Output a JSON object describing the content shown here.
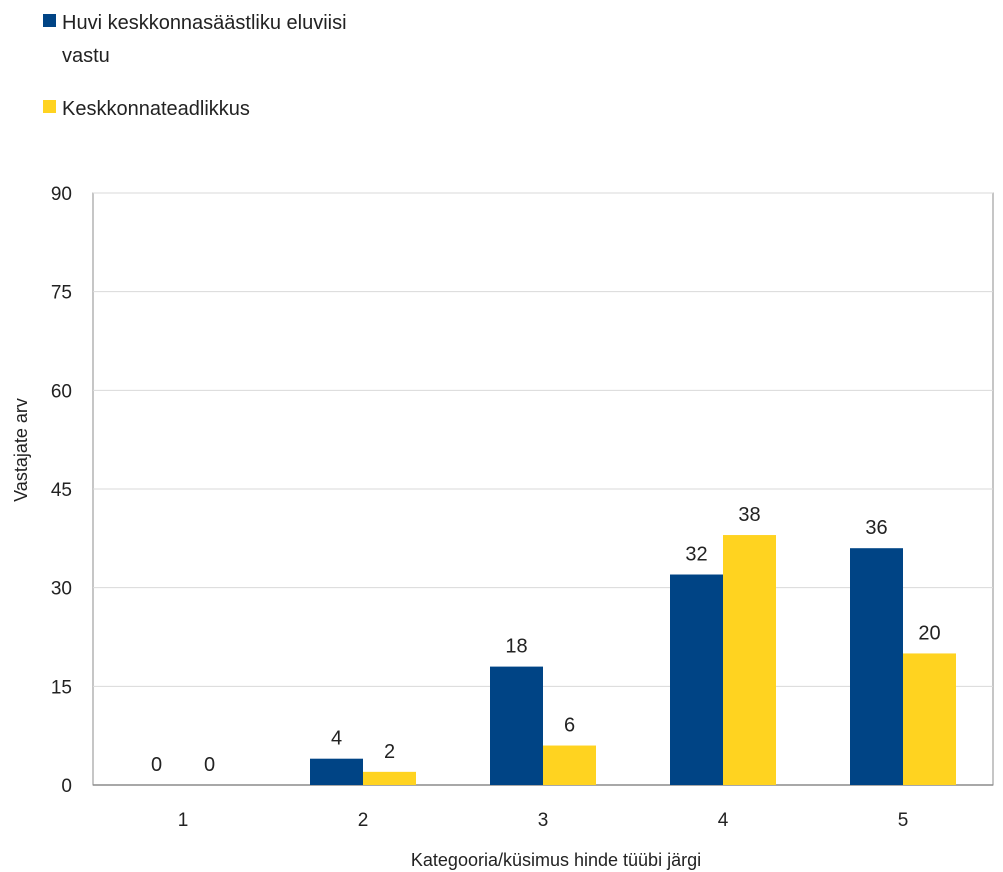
{
  "chart_data": {
    "type": "bar",
    "categories": [
      "1",
      "2",
      "3",
      "4",
      "5"
    ],
    "series": [
      {
        "name": "Huvi keskkonnasäästliku eluviisi vastu",
        "name_lines": [
          "Huvi keskkonnasäästliku eluviisi",
          "vastu"
        ],
        "color": "#004485",
        "values": [
          0,
          4,
          18,
          32,
          36
        ]
      },
      {
        "name": "Keskkonnateadlikkus",
        "name_lines": [
          "Keskkonnateadlikkus"
        ],
        "color": "#FFD320",
        "values": [
          0,
          2,
          6,
          38,
          20
        ]
      }
    ],
    "title": "",
    "xlabel": "Kategooria/küsimus hinde tüübi järgi",
    "ylabel": "Vastajate arv",
    "ylim": [
      0,
      90
    ],
    "yticks": [
      0,
      15,
      30,
      45,
      60,
      75,
      90
    ],
    "grid": true,
    "legend_position": "top-left",
    "colors": {
      "grid": "#d9d9d9",
      "axis": "#8c8c8c"
    }
  }
}
